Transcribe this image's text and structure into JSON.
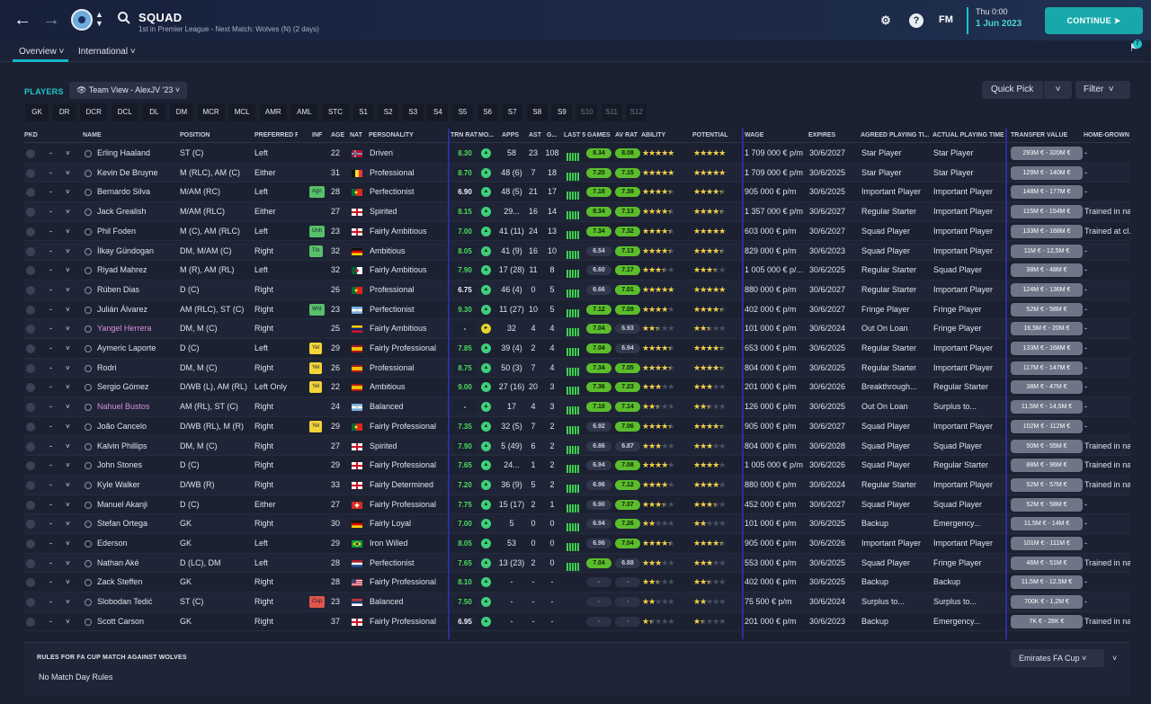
{
  "header": {
    "title": "SQUAD",
    "subtitle": "1st in Premier League - Next Match: Wolves (N) (2 days)",
    "fm_logo": "FM",
    "day": "Thu 0:00",
    "date": "1 Jun 2023",
    "continue_label": "CONTINUE"
  },
  "subnav": {
    "overview": "Overview",
    "international": "International",
    "notif_count": "7"
  },
  "panel": {
    "players_label": "PLAYERS",
    "team_view": "Team View - AlexJV '23",
    "quick_pick": "Quick Pick",
    "filter": "Filter"
  },
  "positions": [
    "GK",
    "DR",
    "DCR",
    "DCL",
    "DL",
    "DM",
    "MCR",
    "MCL",
    "AMR",
    "AML",
    "STC",
    "S1",
    "S2",
    "S3",
    "S4",
    "S5",
    "S6",
    "S7",
    "S8",
    "S9",
    "S10",
    "S11",
    "S12"
  ],
  "columns": {
    "pkd": "PKD",
    "name": "NAME",
    "position": "POSITION",
    "foot": "PREFERRED F...",
    "inf": "INF",
    "age": "AGE",
    "nat": "NAT",
    "personality": "PERSONALITY",
    "trn": "TRN RAT",
    "morale": "MO...",
    "apps": "APPS",
    "ast": "AST",
    "gls": "G...",
    "last5": "LAST 5 GAMES",
    "avrat": "AV RAT",
    "ability": "ABILITY",
    "potential": "POTENTIAL",
    "wage": "WAGE",
    "expires": "EXPIRES",
    "agreed": "AGREED PLAYING TI...",
    "actual": "ACTUAL PLAYING TIME",
    "transfer": "TRANSFER VALUE",
    "homegrown": "HOME-GROWN"
  },
  "players": [
    {
      "name": "Erling Haaland",
      "pos": "ST (C)",
      "foot": "Left",
      "inf": "",
      "age": "22",
      "flag": "Norway",
      "pers": "Driven",
      "trn": "8.30",
      "mor": "A",
      "apps": "58",
      "ast": "23",
      "gls": "108",
      "last": "8.34",
      "av": "8.08",
      "ab": 5,
      "po": 5,
      "wage": "1 709 000 € p/m",
      "exp": "30/6/2027",
      "agreed": "Star Player",
      "actual": "Star Player",
      "tv": "293M € - 320M €",
      "hg": "-",
      "loan": false
    },
    {
      "name": "Kevin De Bruyne",
      "pos": "M (RLC), AM (C)",
      "foot": "Either",
      "inf": "",
      "age": "31",
      "flag": "Belgium",
      "pers": "Professional",
      "trn": "8.70",
      "mor": "A",
      "apps": "48 (6)",
      "ast": "7",
      "gls": "18",
      "last": "7.20",
      "av": "7.15",
      "ab": 5,
      "po": 5,
      "wage": "1 709 000 € p/m",
      "exp": "30/6/2025",
      "agreed": "Star Player",
      "actual": "Star Player",
      "tv": "129M € - 140M €",
      "hg": "-",
      "loan": false
    },
    {
      "name": "Bernardo Silva",
      "pos": "M/AM (RC)",
      "foot": "Left",
      "inf": "Agn",
      "age": "28",
      "flag": "Portugal",
      "pers": "Perfectionist",
      "trn": "6.90",
      "mor": "A",
      "apps": "48 (5)",
      "ast": "21",
      "gls": "17",
      "last": "7.18",
      "av": "7.39",
      "ab": 4.5,
      "po": 4.5,
      "wage": "905 000 € p/m",
      "exp": "30/6/2025",
      "agreed": "Important Player",
      "actual": "Important Player",
      "tv": "148M € - 177M €",
      "hg": "-",
      "loan": false
    },
    {
      "name": "Jack Grealish",
      "pos": "M/AM (RLC)",
      "foot": "Either",
      "inf": "",
      "age": "27",
      "flag": "England",
      "pers": "Spirited",
      "trn": "8.15",
      "mor": "A",
      "apps": "29...",
      "ast": "16",
      "gls": "14",
      "last": "8.34",
      "av": "7.13",
      "ab": 4.5,
      "po": 4.5,
      "wage": "1 357 000 € p/m",
      "exp": "30/6/2027",
      "agreed": "Regular Starter",
      "actual": "Important Player",
      "tv": "115M € - 154M €",
      "hg": "Trained in na...",
      "loan": false
    },
    {
      "name": "Phil Foden",
      "pos": "M (C), AM (RLC)",
      "foot": "Left",
      "inf": "Unh",
      "age": "23",
      "flag": "England",
      "pers": "Fairly Ambitious",
      "trn": "7.00",
      "mor": "A",
      "apps": "41 (11)",
      "ast": "24",
      "gls": "13",
      "last": "7.34",
      "av": "7.32",
      "ab": 4.5,
      "po": 5,
      "wage": "603 000 € p/m",
      "exp": "30/6/2027",
      "agreed": "Squad Player",
      "actual": "Important Player",
      "tv": "133M € - 168M €",
      "hg": "Trained at cl...",
      "loan": false
    },
    {
      "name": "İlkay Gündogan",
      "pos": "DM, M/AM (C)",
      "foot": "Right",
      "inf": "Tm",
      "age": "32",
      "flag": "Germany",
      "pers": "Ambitious",
      "trn": "8.05",
      "mor": "A",
      "apps": "41 (9)",
      "ast": "16",
      "gls": "10",
      "last": "6.54",
      "av": "7.13",
      "ab": 4.5,
      "po": 4.5,
      "wage": "829 000 € p/m",
      "exp": "30/6/2023",
      "agreed": "Squad Player",
      "actual": "Important Player",
      "tv": "11M € - 12,5M €",
      "hg": "-",
      "loan": false
    },
    {
      "name": "Riyad Mahrez",
      "pos": "M (R), AM (RL)",
      "foot": "Left",
      "inf": "",
      "age": "32",
      "flag": "Algeria",
      "pers": "Fairly Ambitious",
      "trn": "7.90",
      "mor": "A",
      "apps": "17 (28)",
      "ast": "11",
      "gls": "8",
      "last": "6.60",
      "av": "7.17",
      "ab": 3.5,
      "po": 3.5,
      "wage": "1 005 000 € p/...",
      "exp": "30/6/2025",
      "agreed": "Regular Starter",
      "actual": "Squad Player",
      "tv": "38M € - 48M €",
      "hg": "-",
      "loan": false
    },
    {
      "name": "Rúben Dias",
      "pos": "D (C)",
      "foot": "Right",
      "inf": "",
      "age": "26",
      "flag": "Portugal",
      "pers": "Professional",
      "trn": "6.75",
      "mor": "A",
      "apps": "46 (4)",
      "ast": "0",
      "gls": "5",
      "last": "6.66",
      "av": "7.01",
      "ab": 5,
      "po": 5,
      "wage": "880 000 € p/m",
      "exp": "30/6/2027",
      "agreed": "Regular Starter",
      "actual": "Important Player",
      "tv": "124M € - 136M €",
      "hg": "-",
      "loan": false
    },
    {
      "name": "Julián Álvarez",
      "pos": "AM (RLC), ST (C)",
      "foot": "Right",
      "inf": "Wnt",
      "age": "23",
      "flag": "Argentina",
      "pers": "Perfectionist",
      "trn": "9.30",
      "mor": "A",
      "apps": "11 (27)",
      "ast": "10",
      "gls": "5",
      "last": "7.12",
      "av": "7.09",
      "ab": 4,
      "po": 4.5,
      "wage": "402 000 € p/m",
      "exp": "30/6/2027",
      "agreed": "Fringe Player",
      "actual": "Fringe Player",
      "tv": "52M € - 58M €",
      "hg": "-",
      "loan": false
    },
    {
      "name": "Yangel Herrera",
      "pos": "DM, M (C)",
      "foot": "Right",
      "inf": "",
      "age": "25",
      "flag": "Venezuela",
      "pers": "Fairly Ambitious",
      "trn": "-",
      "mor": "B",
      "apps": "32",
      "ast": "4",
      "gls": "4",
      "last": "7.04",
      "av": "6.93",
      "ab": 2.5,
      "po": 2.5,
      "wage": "101 000 € p/m",
      "exp": "30/6/2024",
      "agreed": "Out On Loan",
      "actual": "Fringe Player",
      "tv": "16,5M € - 20M €",
      "hg": "-",
      "loan": true
    },
    {
      "name": "Aymeric Laporte",
      "pos": "D (C)",
      "foot": "Left",
      "inf": "Yel",
      "age": "29",
      "flag": "Spain",
      "pers": "Fairly Professional",
      "trn": "7.85",
      "mor": "A",
      "apps": "39 (4)",
      "ast": "2",
      "gls": "4",
      "last": "7.04",
      "av": "6.94",
      "ab": 4.5,
      "po": 4.5,
      "wage": "653 000 € p/m",
      "exp": "30/6/2025",
      "agreed": "Regular Starter",
      "actual": "Important Player",
      "tv": "133M € - 168M €",
      "hg": "-",
      "loan": false
    },
    {
      "name": "Rodri",
      "pos": "DM, M (C)",
      "foot": "Right",
      "inf": "Yel",
      "age": "26",
      "flag": "Spain",
      "pers": "Professional",
      "trn": "8.75",
      "mor": "A",
      "apps": "50 (3)",
      "ast": "7",
      "gls": "4",
      "last": "7.34",
      "av": "7.05",
      "ab": 4.5,
      "po": 4.5,
      "wage": "804 000 € p/m",
      "exp": "30/6/2025",
      "agreed": "Regular Starter",
      "actual": "Important Player",
      "tv": "117M € - 147M €",
      "hg": "-",
      "loan": false
    },
    {
      "name": "Sergio Gómez",
      "pos": "D/WB (L), AM (RL)",
      "foot": "Left Only",
      "inf": "Yel",
      "age": "22",
      "flag": "Spain",
      "pers": "Ambitious",
      "trn": "9.00",
      "mor": "A",
      "apps": "27 (16)",
      "ast": "20",
      "gls": "3",
      "last": "7.36",
      "av": "7.23",
      "ab": 3,
      "po": 3,
      "wage": "201 000 € p/m",
      "exp": "30/6/2026",
      "agreed": "Breakthrough...",
      "actual": "Regular Starter",
      "tv": "38M € - 47M €",
      "hg": "-",
      "loan": false
    },
    {
      "name": "Nahuel Bustos",
      "pos": "AM (RL), ST (C)",
      "foot": "Right",
      "inf": "",
      "age": "24",
      "flag": "Argentina",
      "pers": "Balanced",
      "trn": "-",
      "mor": "A",
      "apps": "17",
      "ast": "4",
      "gls": "3",
      "last": "7.10",
      "av": "7.14",
      "ab": 2.5,
      "po": 2.5,
      "wage": "126 000 € p/m",
      "exp": "30/6/2025",
      "agreed": "Out On Loan",
      "actual": "Surplus to...",
      "tv": "11,5M € - 14,5M €",
      "hg": "-",
      "loan": true
    },
    {
      "name": "João Cancelo",
      "pos": "D/WB (RL), M (R)",
      "foot": "Right",
      "inf": "Yel",
      "age": "29",
      "flag": "Portugal",
      "pers": "Fairly Professional",
      "trn": "7.35",
      "mor": "A",
      "apps": "32 (5)",
      "ast": "7",
      "gls": "2",
      "last": "6.92",
      "av": "7.06",
      "ab": 4.5,
      "po": 4.5,
      "wage": "905 000 € p/m",
      "exp": "30/6/2027",
      "agreed": "Squad Player",
      "actual": "Important Player",
      "tv": "102M € - 112M €",
      "hg": "-",
      "loan": false
    },
    {
      "name": "Kalvin Phillips",
      "pos": "DM, M (C)",
      "foot": "Right",
      "inf": "",
      "age": "27",
      "flag": "England",
      "pers": "Spirited",
      "trn": "7.90",
      "mor": "A",
      "apps": "5 (49)",
      "ast": "6",
      "gls": "2",
      "last": "6.86",
      "av": "6.87",
      "ab": 3,
      "po": 3,
      "wage": "804 000 € p/m",
      "exp": "30/6/2028",
      "agreed": "Squad Player",
      "actual": "Squad Player",
      "tv": "50M € - 55M €",
      "hg": "Trained in na...",
      "loan": false
    },
    {
      "name": "John Stones",
      "pos": "D (C)",
      "foot": "Right",
      "inf": "",
      "age": "29",
      "flag": "England",
      "pers": "Fairly Professional",
      "trn": "7.65",
      "mor": "A",
      "apps": "24...",
      "ast": "1",
      "gls": "2",
      "last": "6.94",
      "av": "7.08",
      "ab": 4,
      "po": 4,
      "wage": "1 005 000 € p/m",
      "exp": "30/6/2026",
      "agreed": "Squad Player",
      "actual": "Regular Starter",
      "tv": "88M € - 96M €",
      "hg": "Trained in na...",
      "loan": false
    },
    {
      "name": "Kyle Walker",
      "pos": "D/WB (R)",
      "foot": "Right",
      "inf": "",
      "age": "33",
      "flag": "England",
      "pers": "Fairly Determined",
      "trn": "7.20",
      "mor": "A",
      "apps": "36 (9)",
      "ast": "5",
      "gls": "2",
      "last": "6.96",
      "av": "7.12",
      "ab": 4,
      "po": 4,
      "wage": "880 000 € p/m",
      "exp": "30/6/2024",
      "agreed": "Regular Starter",
      "actual": "Important Player",
      "tv": "52M € - 57M €",
      "hg": "Trained in na...",
      "loan": false
    },
    {
      "name": "Manuel Akanji",
      "pos": "D (C)",
      "foot": "Either",
      "inf": "",
      "age": "27",
      "flag": "Switzerland",
      "pers": "Fairly Professional",
      "trn": "7.75",
      "mor": "A",
      "apps": "15 (17)",
      "ast": "2",
      "gls": "1",
      "last": "6.90",
      "av": "7.07",
      "ab": 3.5,
      "po": 3.5,
      "wage": "452 000 € p/m",
      "exp": "30/6/2027",
      "agreed": "Squad Player",
      "actual": "Squad Player",
      "tv": "52M € - 58M €",
      "hg": "-",
      "loan": false
    },
    {
      "name": "Stefan Ortega",
      "pos": "GK",
      "foot": "Right",
      "inf": "",
      "age": "30",
      "flag": "Germany",
      "pers": "Fairly Loyal",
      "trn": "7.00",
      "mor": "A",
      "apps": "5",
      "ast": "0",
      "gls": "0",
      "last": "6.94",
      "av": "7.26",
      "ab": 2,
      "po": 2,
      "wage": "101 000 € p/m",
      "exp": "30/6/2025",
      "agreed": "Backup",
      "actual": "Emergency...",
      "tv": "11,5M € - 14M €",
      "hg": "-",
      "loan": false
    },
    {
      "name": "Ederson",
      "pos": "GK",
      "foot": "Left",
      "inf": "",
      "age": "29",
      "flag": "Brazil",
      "pers": "Iron Willed",
      "trn": "8.05",
      "mor": "A",
      "apps": "53",
      "ast": "0",
      "gls": "0",
      "last": "6.96",
      "av": "7.04",
      "ab": 4.5,
      "po": 4.5,
      "wage": "905 000 € p/m",
      "exp": "30/6/2026",
      "agreed": "Important Player",
      "actual": "Important Player",
      "tv": "101M € - 111M €",
      "hg": "-",
      "loan": false
    },
    {
      "name": "Nathan Aké",
      "pos": "D (LC), DM",
      "foot": "Left",
      "inf": "",
      "age": "28",
      "flag": "Netherlands",
      "pers": "Perfectionist",
      "trn": "7.65",
      "mor": "A",
      "apps": "13 (23)",
      "ast": "2",
      "gls": "0",
      "last": "7.04",
      "av": "6.88",
      "ab": 3,
      "po": 3,
      "wage": "553 000 € p/m",
      "exp": "30/6/2025",
      "agreed": "Squad Player",
      "actual": "Fringe Player",
      "tv": "46M € - 51M €",
      "hg": "Trained in na...",
      "loan": false
    },
    {
      "name": "Zack Steffen",
      "pos": "GK",
      "foot": "Right",
      "inf": "",
      "age": "28",
      "flag": "USA",
      "pers": "Fairly Professional",
      "trn": "8.10",
      "mor": "A",
      "apps": "-",
      "ast": "-",
      "gls": "-",
      "last": "-",
      "av": "-",
      "ab": 2.5,
      "po": 2.5,
      "wage": "402 000 € p/m",
      "exp": "30/6/2025",
      "agreed": "Backup",
      "actual": "Backup",
      "tv": "11,5M € - 12,5M €",
      "hg": "-",
      "loan": false
    },
    {
      "name": "Slobodan Tedić",
      "pos": "ST (C)",
      "foot": "Right",
      "inf": "Cup",
      "age": "23",
      "flag": "Serbia",
      "pers": "Balanced",
      "trn": "7.50",
      "mor": "A",
      "apps": "-",
      "ast": "-",
      "gls": "-",
      "last": "-",
      "av": "-",
      "ab": 2,
      "po": 2,
      "wage": "75 500 € p/m",
      "exp": "30/6/2024",
      "agreed": "Surplus to...",
      "actual": "Surplus to...",
      "tv": "700K € - 1,2M €",
      "hg": "-",
      "loan": false
    },
    {
      "name": "Scott Carson",
      "pos": "GK",
      "foot": "Right",
      "inf": "",
      "age": "37",
      "flag": "England",
      "pers": "Fairly Professional",
      "trn": "6.95",
      "mor": "A",
      "apps": "-",
      "ast": "-",
      "gls": "-",
      "last": "-",
      "av": "-",
      "ab": 1.5,
      "po": 1.5,
      "wage": "201 000 € p/m",
      "exp": "30/6/2023",
      "agreed": "Backup",
      "actual": "Emergency...",
      "tv": "7K € - 28K €",
      "hg": "Trained in na...",
      "loan": false
    }
  ],
  "footer": {
    "rules_title": "RULES FOR FA CUP MATCH AGAINST WOLVES",
    "rules_none": "No Match Day Rules",
    "competition": "Emirates FA Cup"
  }
}
